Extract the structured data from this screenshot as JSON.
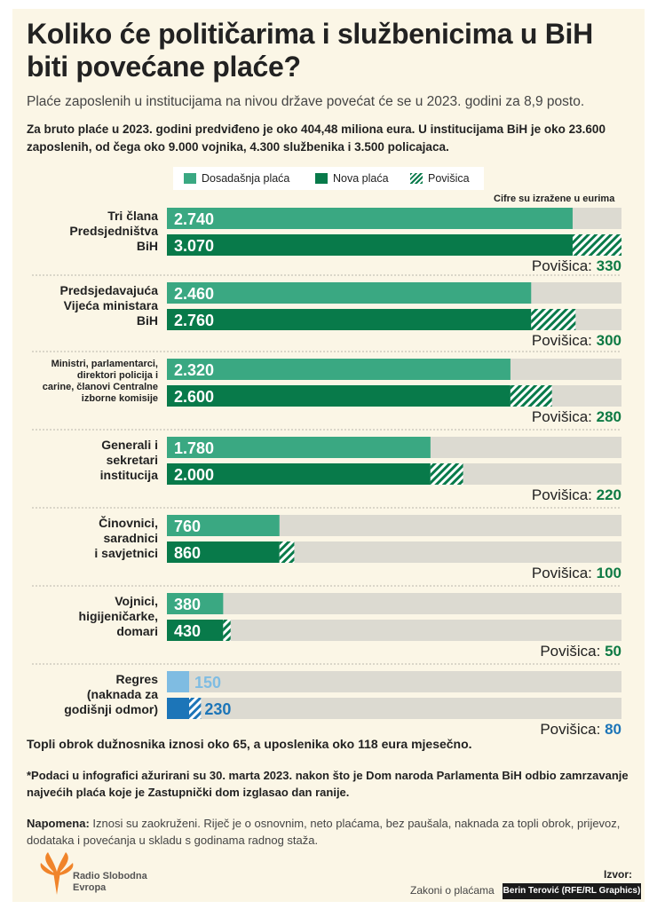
{
  "header": {
    "title": "Koliko će političarima i službenicima u BiH biti povećane plaće?",
    "subtitle": "Plaće zaposlenih u institucijama na nivou države povećat će se u 2023. godini za 8,9 posto.",
    "intro": "Za bruto plaće u 2023. godini predviđeno je oko 404,48 miliona eura. U institucijama BiH je oko 23.600 zaposlenih, od čega oko 9.000 vojnika, 4.300 službenika i 3.500 policajaca."
  },
  "legend": {
    "current": "Dosadašnja plaća",
    "new": "Nova plaća",
    "raise": "Povišica"
  },
  "unit_note": "Cifre su izražene u eurima",
  "colors": {
    "current": "#3aa882",
    "new": "#087a4a",
    "track": "#dcdad1",
    "regres_current": "#7fbce2",
    "regres_new": "#1c75b8",
    "raise_green": "#0e7a44",
    "raise_blue": "#1c75b8"
  },
  "chart_data": {
    "type": "bar",
    "orientation": "horizontal",
    "xlim": [
      0,
      3070
    ],
    "categories": [
      "Tri člana Predsjedništva BiH",
      "Predsjedavajuća Vijeća ministara BiH",
      "Ministri, parlamentarci, direktori policija i carine, članovi Centralne izborne komisije",
      "Generali i sekretari institucija",
      "Činovnici, saradnici i savjetnici",
      "Vojnici, higijeničarke, domari",
      "Regres (naknada za godišnji odmor)"
    ],
    "series": [
      {
        "name": "Dosadašnja plaća",
        "values": [
          2740,
          2460,
          2320,
          1780,
          760,
          380,
          150
        ]
      },
      {
        "name": "Nova plaća",
        "values": [
          3070,
          2760,
          2600,
          2000,
          860,
          430,
          230
        ]
      },
      {
        "name": "Povišica",
        "values": [
          330,
          300,
          280,
          220,
          100,
          50,
          80
        ]
      }
    ],
    "value_labels_current": [
      "2.740",
      "2.460",
      "2.320",
      "1.780",
      "760",
      "380",
      "150"
    ],
    "value_labels_new": [
      "3.070",
      "2.760",
      "2.600",
      "2.000",
      "860",
      "430",
      "230"
    ],
    "raise_labels": [
      "330",
      "300",
      "280",
      "220",
      "100",
      "50",
      "80"
    ],
    "raise_prefix": "Povišica:"
  },
  "footer": {
    "obrok": "Topli obrok dužnosnika iznosi oko 65, a uposlenika oko 118 eura mjesečno.",
    "footnote": "*Podaci u infografici ažurirani su 30. marta 2023. nakon što je Dom naroda Parlamenta BiH odbio zamrzavanje najvećih plaća koje je Zastupnički dom izglasao dan ranije.",
    "napomena_label": "Napomena:",
    "napomena_text": " Iznosi su zaokruženi. Riječ je o osnovnim, neto plaćama, bez paušala, naknada za topli obrok, prijevoz, dodataka i povećanja u skladu s godinama radnog staža.",
    "logo_line1": "Radio Slobodna",
    "logo_line2": "Evropa",
    "izvor_label": "Izvor:",
    "izvor_value": "Zakoni o plaćama",
    "credit": "Berin Terović (RFE/RL Graphics)"
  },
  "category_label_lines": [
    [
      "Tri člana",
      "Predsjedništva",
      "BiH"
    ],
    [
      "Predsjedavajuća",
      "Vijeća ministara",
      "BiH"
    ],
    [
      "Ministri, parlamentarci,",
      "direktori policija i",
      "carine, članovi Centralne",
      "izborne komisije"
    ],
    [
      "Generali i",
      "sekretari",
      "institucija"
    ],
    [
      "Činovnici,",
      "saradnici",
      "i savjetnici"
    ],
    [
      "Vojnici,",
      "higijeničarke,",
      "domari"
    ],
    [
      "Regres",
      "(naknada za",
      "godišnji odmor)"
    ]
  ]
}
